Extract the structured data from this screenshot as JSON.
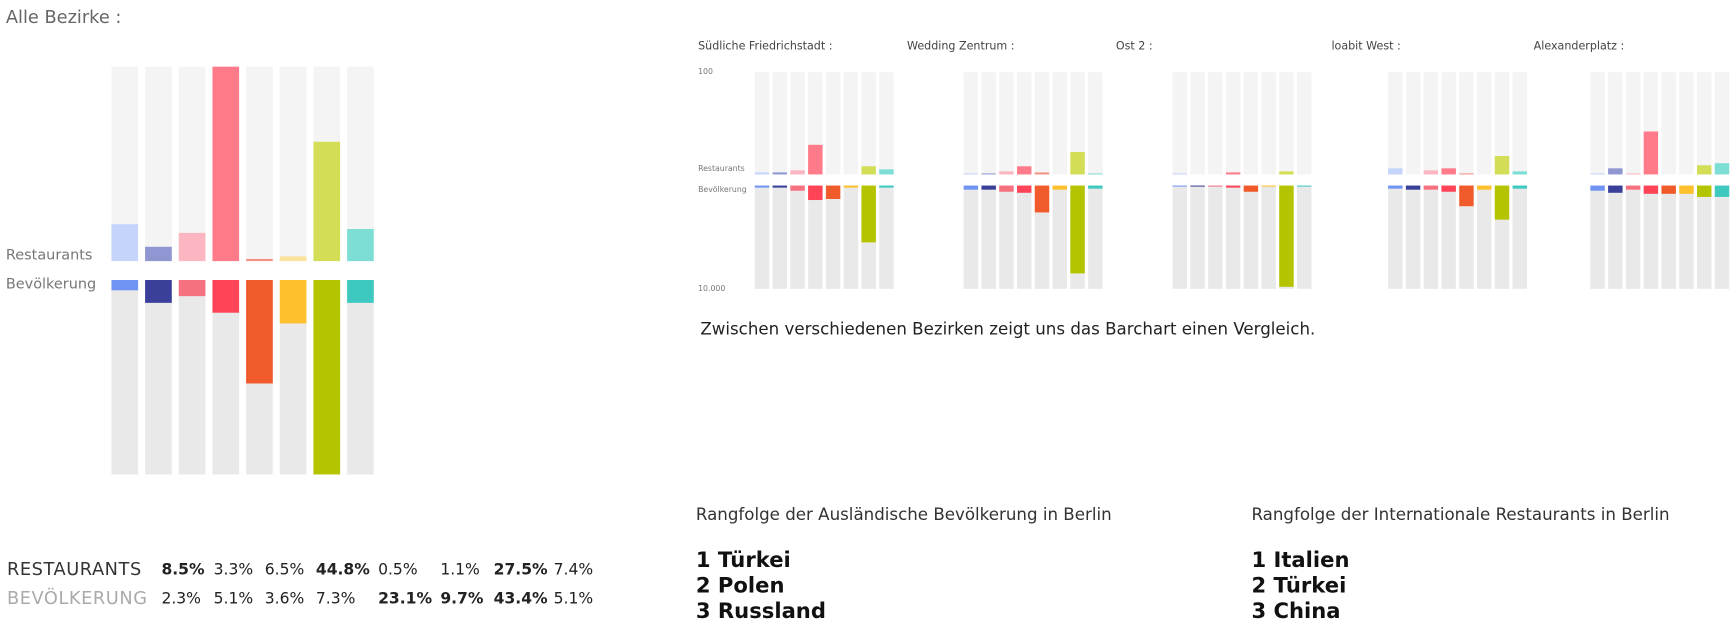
{
  "chart_data": [
    {
      "type": "diverging_bar",
      "title": "Alle Bezirke :",
      "series": [
        {
          "name": "Restaurants",
          "row_label": "RESTAURANTS",
          "ylim": [
            0,
            44.8
          ],
          "colors": [
            "#c4d4fb",
            "#8f96d2",
            "#fbb6c1",
            "#ff7b89",
            "#f39283",
            "#fce29a",
            "#d3dd55",
            "#7dded6"
          ],
          "values": [
            8.5,
            3.3,
            6.5,
            44.8,
            0.5,
            1.1,
            27.5,
            7.4
          ],
          "value_labels": [
            "8.5%",
            "3.3%",
            "6.5%",
            "44.8%",
            "0.5%",
            "1.1%",
            "27.5%",
            "7.4%"
          ]
        },
        {
          "name": "Bevölkerung",
          "row_label": "BEVÖLKERUNG",
          "ylim": [
            0,
            43.4
          ],
          "colors": [
            "#6f94f4",
            "#3a3f9a",
            "#f6717f",
            "#ff4458",
            "#f15a2b",
            "#fec02c",
            "#b4c400",
            "#3dc9c0"
          ],
          "values": [
            2.3,
            5.1,
            3.6,
            7.3,
            23.1,
            9.7,
            43.4,
            5.1
          ],
          "value_labels": [
            "2.3%",
            "5.1%",
            "3.6%",
            "7.3%",
            "23.1%",
            "9.7%",
            "43.4%",
            "5.1%"
          ]
        }
      ]
    },
    {
      "type": "diverging_bar",
      "title": "Südliche Friedrichstadt :",
      "series": [
        {
          "name": "Restaurants",
          "ylim": [
            0,
            100
          ],
          "yticks": [
            100
          ],
          "colors": [
            "#c4d4fb",
            "#8f96d2",
            "#fbb6c1",
            "#ff7b89",
            "#f39283",
            "#fce29a",
            "#d3dd55",
            "#7dded6"
          ],
          "values": [
            2,
            2,
            4,
            29,
            0,
            0,
            8,
            5
          ]
        },
        {
          "name": "Bevölkerung",
          "ylim": [
            0,
            10000
          ],
          "yticks": [
            {
              "value": 10000,
              "label": "10.000"
            }
          ],
          "colors": [
            "#6f94f4",
            "#3a3f9a",
            "#f6717f",
            "#ff4458",
            "#f15a2b",
            "#fec02c",
            "#b4c400",
            "#3dc9c0"
          ],
          "values": [
            200,
            200,
            500,
            1400,
            1300,
            200,
            5500,
            200
          ]
        }
      ]
    },
    {
      "type": "diverging_bar",
      "title": "Wedding Zentrum :",
      "series": [
        {
          "ylim": [
            0,
            100
          ],
          "colors": [
            "#c4d4fb",
            "#8f96d2",
            "#fbb6c1",
            "#ff7b89",
            "#f39283",
            "#fce29a",
            "#d3dd55",
            "#7dded6"
          ],
          "values": [
            1,
            1,
            3,
            8,
            2,
            0,
            22,
            1
          ]
        },
        {
          "ylim": [
            0,
            10000
          ],
          "colors": [
            "#6f94f4",
            "#3a3f9a",
            "#f6717f",
            "#ff4458",
            "#f15a2b",
            "#fec02c",
            "#b4c400",
            "#3dc9c0"
          ],
          "values": [
            400,
            400,
            600,
            700,
            2600,
            400,
            8500,
            300
          ]
        }
      ]
    },
    {
      "type": "diverging_bar",
      "title": "Ost 2 :",
      "series": [
        {
          "ylim": [
            0,
            100
          ],
          "colors": [
            "#c4d4fb",
            "#8f96d2",
            "#fbb6c1",
            "#ff7b89",
            "#f39283",
            "#fce29a",
            "#d3dd55",
            "#7dded6"
          ],
          "values": [
            1,
            0,
            0,
            2,
            0,
            0,
            3,
            0
          ]
        },
        {
          "ylim": [
            0,
            10000
          ],
          "colors": [
            "#6f94f4",
            "#3a3f9a",
            "#f6717f",
            "#ff4458",
            "#f15a2b",
            "#fec02c",
            "#b4c400",
            "#3dc9c0"
          ],
          "values": [
            100,
            100,
            100,
            200,
            600,
            100,
            9800,
            100
          ]
        }
      ]
    },
    {
      "type": "diverging_bar",
      "title": "loabit West :",
      "series": [
        {
          "ylim": [
            0,
            100
          ],
          "colors": [
            "#c4d4fb",
            "#8f96d2",
            "#fbb6c1",
            "#ff7b89",
            "#f39283",
            "#fce29a",
            "#d3dd55",
            "#7dded6"
          ],
          "values": [
            6,
            0,
            4,
            6,
            1,
            0,
            18,
            3
          ]
        },
        {
          "ylim": [
            0,
            10000
          ],
          "colors": [
            "#6f94f4",
            "#3a3f9a",
            "#f6717f",
            "#ff4458",
            "#f15a2b",
            "#fec02c",
            "#b4c400",
            "#3dc9c0"
          ],
          "values": [
            300,
            400,
            400,
            600,
            2000,
            400,
            3300,
            300
          ]
        }
      ]
    },
    {
      "type": "diverging_bar",
      "title": "Alexanderplatz :",
      "series": [
        {
          "ylim": [
            0,
            100
          ],
          "colors": [
            "#c4d4fb",
            "#8f96d2",
            "#fbb6c1",
            "#ff7b89",
            "#f39283",
            "#fce29a",
            "#d3dd55",
            "#7dded6"
          ],
          "values": [
            1,
            6,
            1,
            42,
            0,
            0,
            9,
            11
          ]
        },
        {
          "ylim": [
            0,
            10000
          ],
          "colors": [
            "#6f94f4",
            "#3a3f9a",
            "#f6717f",
            "#ff4458",
            "#f15a2b",
            "#fec02c",
            "#b4c400",
            "#3dc9c0"
          ],
          "values": [
            500,
            700,
            400,
            800,
            800,
            800,
            1100,
            1100
          ]
        }
      ]
    }
  ],
  "caption": "Zwischen verschiedenen Bezirken zeigt uns das Barchart einen Vergleich.",
  "rankings": [
    {
      "title": "Rangfolge der Ausländische Bevölkerung in Berlin",
      "items": [
        "1 Türkei",
        "2 Polen",
        "3 Russland"
      ]
    },
    {
      "title": "Rangfolge der Internationale Restaurants in Berlin",
      "items": [
        "1 Italien",
        "2 Türkei",
        "3 China"
      ]
    }
  ]
}
